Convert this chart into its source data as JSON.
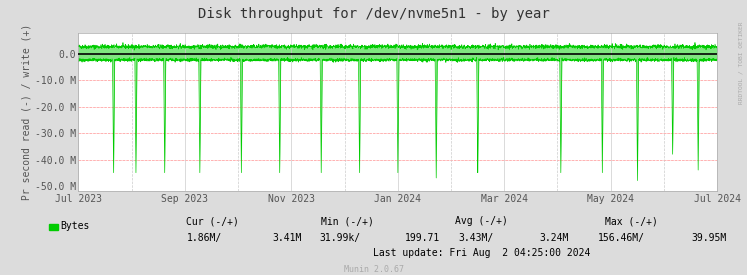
{
  "title": "Disk throughput for /dev/nvme5n1 - by year",
  "ylabel": "Pr second read (-) / write (+)",
  "bg_color": "#DCDCDC",
  "plot_bg_color": "#FFFFFF",
  "line_color": "#00CC00",
  "zero_line_color": "#000000",
  "ylim": [
    -52000000,
    8000000
  ],
  "yticks": [
    -50000000,
    -40000000,
    -30000000,
    -20000000,
    -10000000,
    0.0
  ],
  "ytick_labels": [
    "-50.0 M",
    "-40.0 M",
    "-30.0 M",
    "-20.0 M",
    "-10.0 M",
    "0.0"
  ],
  "legend_label": "Bytes",
  "legend_color": "#00CC00",
  "cur_label": "Cur (-/+)",
  "min_label": "Min (-/+)",
  "avg_label": "Avg (-/+)",
  "max_label": "Max (-/+)",
  "last_update": "Last update: Fri Aug  2 04:25:00 2024",
  "munin_label": "Munin 2.0.67",
  "rrdtool_label": "RRDTOOL / TOBI OETIKER",
  "month_labels": [
    "Jul 2023",
    "Sep 2023",
    "Nov 2023",
    "Jan 2024",
    "Mar 2024",
    "May 2024",
    "Jul 2024"
  ],
  "month_x": [
    0.0,
    0.1667,
    0.3333,
    0.5,
    0.6667,
    0.8333,
    1.0
  ],
  "minor_x": [
    0.0833,
    0.25,
    0.4167,
    0.5833,
    0.75,
    0.9167
  ],
  "write_mean": 2800000,
  "write_std": 400000,
  "read_mean": -2200000,
  "read_std": 300000,
  "spike_x": [
    0.055,
    0.09,
    0.135,
    0.19,
    0.255,
    0.315,
    0.38,
    0.44,
    0.5,
    0.56,
    0.625,
    0.755,
    0.82,
    0.875,
    0.93,
    0.97
  ],
  "spike_depth": [
    -45000000,
    -45000000,
    -45000000,
    -45000000,
    -45000000,
    -45000000,
    -45000000,
    -45000000,
    -45000000,
    -47000000,
    -45000000,
    -45000000,
    -45000000,
    -48000000,
    -38000000,
    -44000000
  ],
  "stats_row1": [
    "",
    "Cur (-/+)",
    "",
    "Min (-/+)",
    "",
    "Avg (-/+)",
    "",
    "Max (-/+)"
  ],
  "stats_row2_left": [
    "1.86M/",
    "3.41M",
    "31.99k/",
    "199.71",
    "3.43M/",
    "3.24M",
    "156.46M/",
    "39.95M"
  ]
}
